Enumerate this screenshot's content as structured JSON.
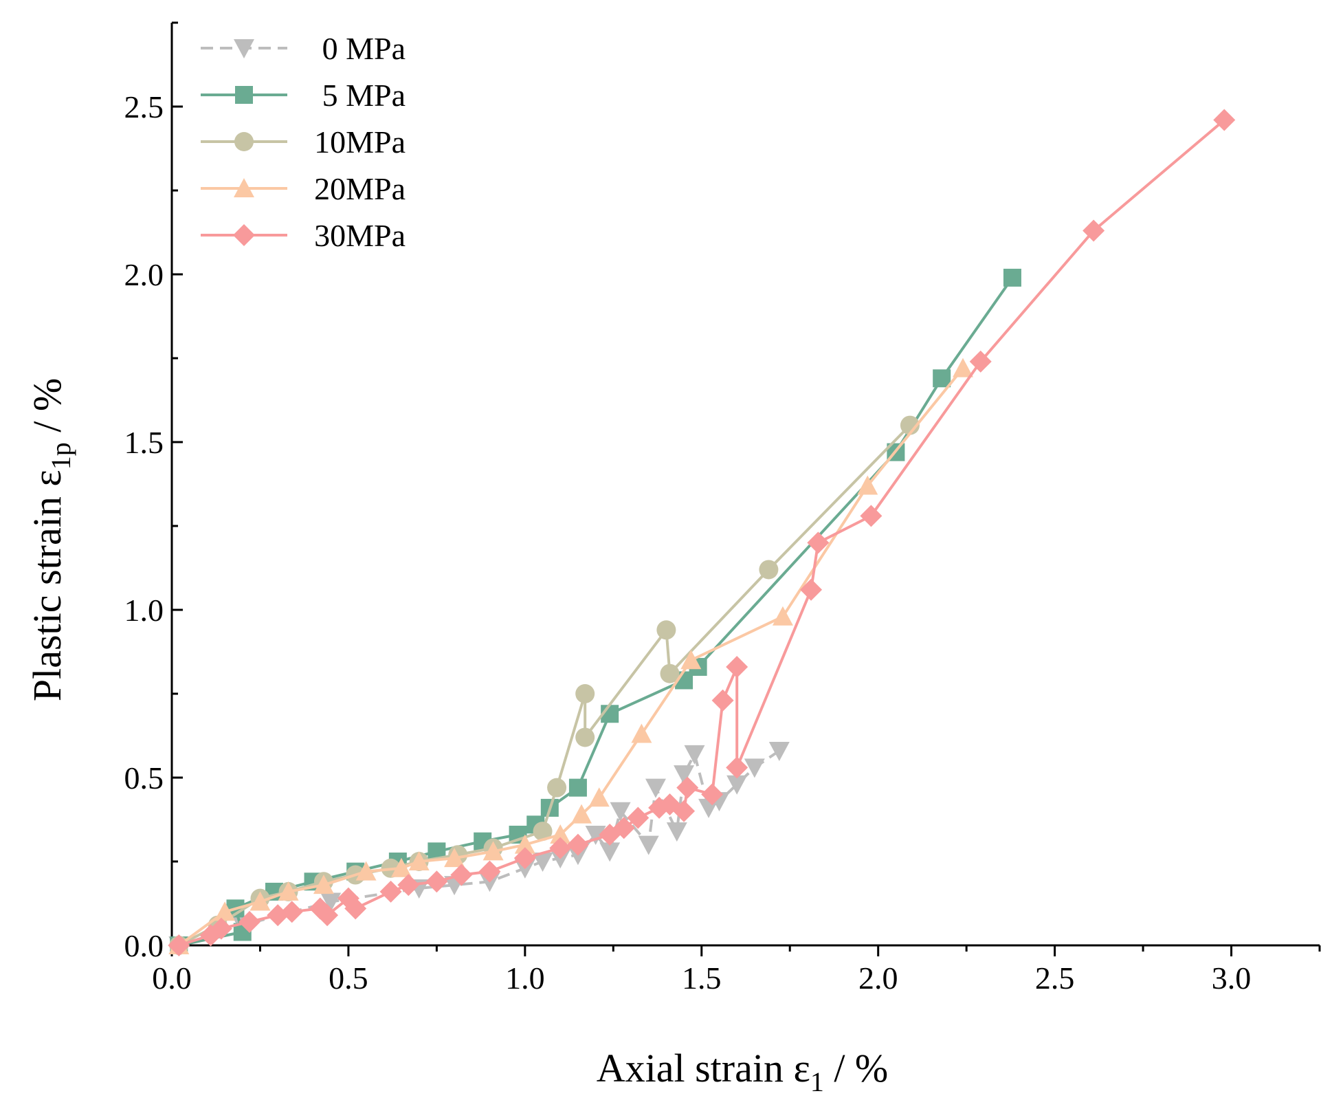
{
  "chart_data": {
    "type": "line",
    "title": "",
    "xlabel": "Axial strain ε",
    "xlabel_sub": "1",
    "xlabel_suffix": " / %",
    "ylabel": "Plastic strain ε",
    "ylabel_sub": "1p",
    "ylabel_suffix": " / %",
    "xlim": [
      0,
      3.25
    ],
    "ylim": [
      0,
      2.75
    ],
    "xticks": [
      0.0,
      0.5,
      1.0,
      1.5,
      2.0,
      2.5,
      3.0
    ],
    "xtick_labels": [
      "0.0",
      "0.5",
      "1.0",
      "1.5",
      "2.0",
      "2.5",
      "3.0"
    ],
    "yticks": [
      0.0,
      0.5,
      1.0,
      1.5,
      2.0,
      2.5
    ],
    "ytick_labels": [
      "0.0",
      "0.5",
      "1.0",
      "1.5",
      "2.0",
      "2.5"
    ],
    "legend_position": "top-left",
    "grid": false,
    "series": [
      {
        "name": "0 MPa",
        "color": "#bdbdbd",
        "marker": "triangle-down",
        "dashed": true,
        "x": [
          0.02,
          0.2,
          0.45,
          0.7,
          0.8,
          0.9,
          1.0,
          1.05,
          1.1,
          1.15,
          1.2,
          1.24,
          1.27,
          1.35,
          1.37,
          1.43,
          1.45,
          1.48,
          1.52,
          1.55,
          1.6,
          1.65,
          1.72
        ],
        "y": [
          0.0,
          0.06,
          0.13,
          0.17,
          0.18,
          0.19,
          0.23,
          0.25,
          0.26,
          0.27,
          0.33,
          0.28,
          0.4,
          0.3,
          0.47,
          0.34,
          0.51,
          0.57,
          0.41,
          0.43,
          0.48,
          0.53,
          0.58
        ]
      },
      {
        "name": "5 MPa",
        "color": "#6aab92",
        "marker": "square",
        "dashed": false,
        "x": [
          0.02,
          0.2,
          0.18,
          0.29,
          0.4,
          0.52,
          0.64,
          0.75,
          0.88,
          0.98,
          1.03,
          1.07,
          1.15,
          1.24,
          1.45,
          1.49,
          2.05,
          2.18,
          2.38
        ],
        "y": [
          0.0,
          0.04,
          0.11,
          0.16,
          0.19,
          0.22,
          0.25,
          0.28,
          0.31,
          0.33,
          0.36,
          0.41,
          0.47,
          0.69,
          0.79,
          0.83,
          1.47,
          1.69,
          1.99
        ],
        "order": [
          0,
          1,
          2,
          3,
          4,
          5,
          6,
          7,
          8,
          9,
          10,
          11,
          12,
          13,
          14,
          15,
          16,
          17,
          18
        ]
      },
      {
        "name": "10MPa",
        "color": "#c7c4a5",
        "marker": "circle",
        "dashed": false,
        "x": [
          0.02,
          0.13,
          0.25,
          0.33,
          0.43,
          0.52,
          0.62,
          0.7,
          0.81,
          0.91,
          1.05,
          1.09,
          1.17,
          1.17,
          1.4,
          1.41,
          1.69,
          2.09
        ],
        "y": [
          0.0,
          0.06,
          0.14,
          0.16,
          0.19,
          0.21,
          0.23,
          0.25,
          0.27,
          0.29,
          0.34,
          0.47,
          0.75,
          0.62,
          0.94,
          0.81,
          1.12,
          1.55
        ]
      },
      {
        "name": "20MPa",
        "color": "#fbc8a4",
        "marker": "triangle-up",
        "dashed": false,
        "x": [
          0.02,
          0.15,
          0.25,
          0.33,
          0.43,
          0.55,
          0.65,
          0.7,
          0.8,
          0.91,
          1.0,
          1.1,
          1.16,
          1.21,
          1.33,
          1.47,
          1.73,
          1.97,
          2.24
        ],
        "y": [
          0.0,
          0.1,
          0.13,
          0.16,
          0.18,
          0.22,
          0.23,
          0.25,
          0.26,
          0.28,
          0.3,
          0.33,
          0.39,
          0.44,
          0.63,
          0.85,
          0.98,
          1.37,
          1.72
        ]
      },
      {
        "name": "30MPa",
        "color": "#f89a9b",
        "marker": "diamond",
        "dashed": false,
        "x": [
          0.02,
          0.11,
          0.14,
          0.22,
          0.3,
          0.34,
          0.42,
          0.44,
          0.5,
          0.52,
          0.62,
          0.67,
          0.75,
          0.82,
          0.9,
          1.0,
          1.1,
          1.15,
          1.24,
          1.28,
          1.32,
          1.38,
          1.41,
          1.45,
          1.46,
          1.53,
          1.56,
          1.6,
          1.6,
          1.81,
          1.83,
          1.98,
          2.29,
          2.61,
          2.98
        ],
        "y": [
          0.0,
          0.03,
          0.05,
          0.07,
          0.09,
          0.1,
          0.11,
          0.09,
          0.14,
          0.11,
          0.16,
          0.18,
          0.19,
          0.21,
          0.22,
          0.26,
          0.29,
          0.3,
          0.33,
          0.35,
          0.38,
          0.41,
          0.42,
          0.4,
          0.47,
          0.45,
          0.73,
          0.83,
          0.53,
          1.06,
          1.2,
          1.28,
          1.74,
          2.13,
          2.46
        ]
      }
    ]
  }
}
